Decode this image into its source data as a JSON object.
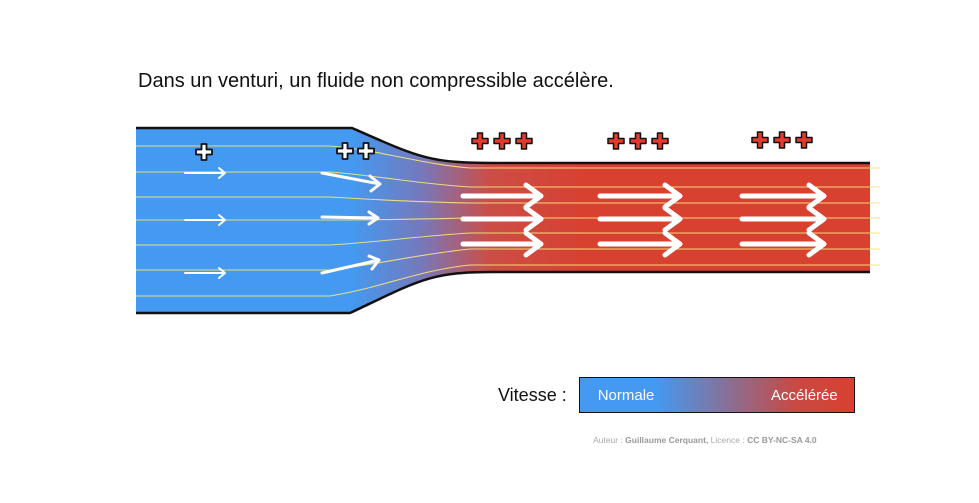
{
  "title": "Dans un venturi, un fluide non compressible accélère.",
  "pressure_labels": {
    "wide_section": "+",
    "converging_section": "++",
    "narrow_section_1": "+++",
    "narrow_section_2": "+++",
    "narrow_section_3": "+++"
  },
  "legend": {
    "label": "Vitesse :",
    "normal": "Normale",
    "accelerated": "Accélérée"
  },
  "credit": {
    "author_prefix": "Auteur :",
    "author_name": "Guillaume Cerquant,",
    "license_prefix": "Licence :",
    "license_name": "CC BY-NC-SA 4.0"
  },
  "colors": {
    "slow_fluid": "#4499f0",
    "fast_fluid": "#d84030",
    "streamline": "#f2e27a",
    "outline": "#111111"
  }
}
